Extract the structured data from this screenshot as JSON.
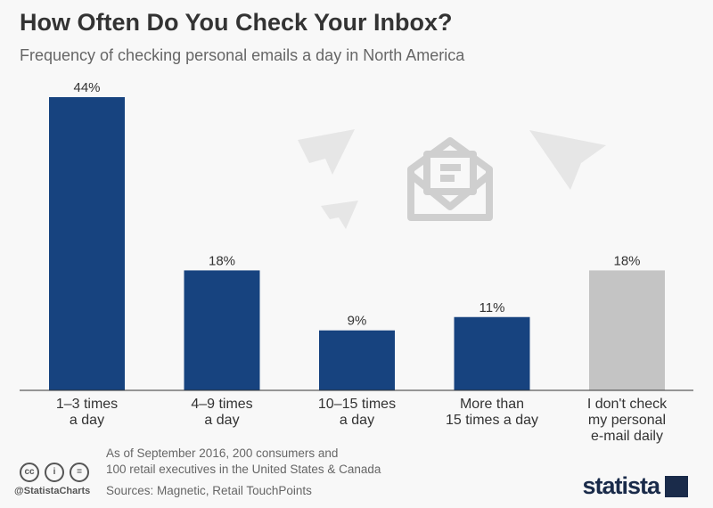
{
  "chart_data": {
    "type": "bar",
    "title": "How Often Do You Check Your Inbox?",
    "subtitle": "Frequency of checking personal emails a day in North America",
    "categories": [
      [
        "1–3 times",
        "a day"
      ],
      [
        "4–9 times",
        "a day"
      ],
      [
        "10–15 times",
        "a day"
      ],
      [
        "More than",
        "15 times a day"
      ],
      [
        "I don't check",
        "my personal",
        "e-mail daily"
      ]
    ],
    "values": [
      44,
      18,
      9,
      11,
      18
    ],
    "data_labels": [
      "44%",
      "18%",
      "9%",
      "11%",
      "18%"
    ],
    "unit": "%",
    "ylim": [
      0,
      44
    ],
    "grid": false,
    "colors": {
      "primary": "#17437f",
      "highlight": "#c4c4c4"
    },
    "bar_colors": [
      "primary",
      "primary",
      "primary",
      "primary",
      "highlight"
    ]
  },
  "footer": {
    "note_line1": "As of September 2016, 200 consumers and",
    "note_line2": "100 retail executives in the United States & Canada",
    "sources": "Sources: Magnetic, Retail TouchPoints",
    "credit": "@StatistaCharts",
    "logo": "statista",
    "license_icons": [
      "cc-icon",
      "attribution-icon",
      "no-derivatives-icon"
    ]
  }
}
